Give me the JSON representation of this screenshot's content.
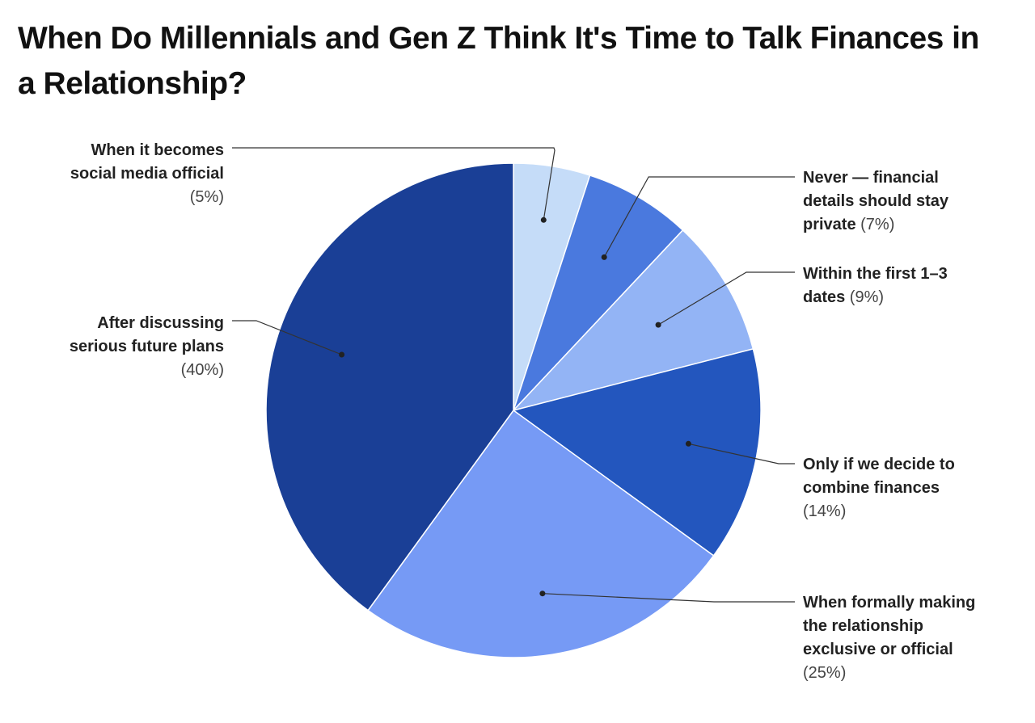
{
  "chart_data": {
    "type": "pie",
    "title": "When Do Millennials and Gen Z Think It's Time to Talk Finances in a Relationship?",
    "slices": [
      {
        "label": "When it becomes social media official",
        "lines": [
          "When it becomes",
          "social media official"
        ],
        "value": 5,
        "value_label": "(5%)",
        "color": "#c5dcf8"
      },
      {
        "label": "Never — financial details should stay private",
        "lines": [
          "Never — financial",
          "details should stay",
          "private"
        ],
        "value": 7,
        "value_label": "(7%)",
        "color": "#4a79de"
      },
      {
        "label": "Within the first 1–3 dates",
        "lines": [
          "Within the first 1–3",
          "dates"
        ],
        "value": 9,
        "value_label": "(9%)",
        "color": "#93b4f5"
      },
      {
        "label": "Only if we decide to combine finances",
        "lines": [
          "Only if we decide to",
          "combine finances"
        ],
        "value": 14,
        "value_label": "(14%)",
        "color": "#2356be"
      },
      {
        "label": "When formally making the relationship exclusive or official",
        "lines": [
          "When formally making",
          "the relationship",
          "exclusive or official"
        ],
        "value": 25,
        "value_label": "(25%)",
        "color": "#769af5"
      },
      {
        "label": "After discussing serious future plans",
        "lines": [
          "After discussing",
          "serious future plans"
        ],
        "value": 40,
        "value_label": "(40%)",
        "color": "#1a3f96"
      }
    ]
  }
}
